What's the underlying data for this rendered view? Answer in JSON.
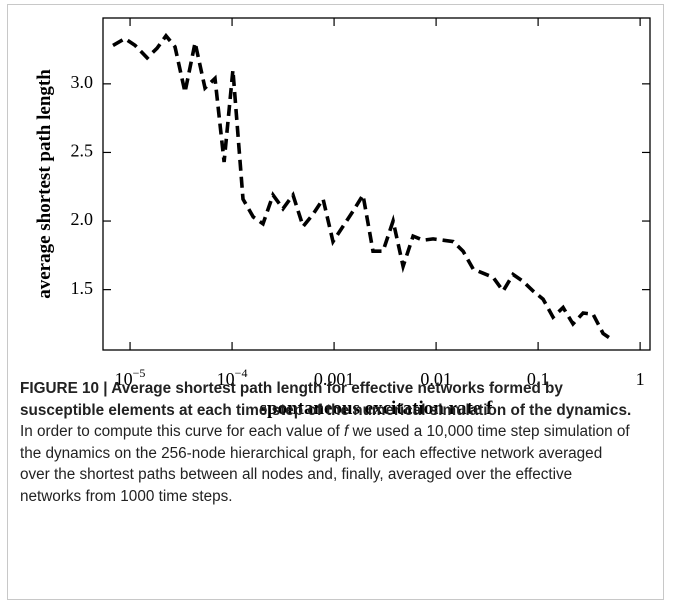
{
  "chart_data": {
    "type": "line",
    "x_label": "spontaneous excitation rate f",
    "y_label": "average shortest path length",
    "x_scale": "log",
    "color": "#000000",
    "line_style": "dashed",
    "x": [
      6.8e-06,
      8.9e-06,
      1.12e-05,
      1.47e-05,
      1.84e-05,
      2.25e-05,
      2.76e-05,
      3.46e-05,
      4.34e-05,
      5.43e-05,
      6.81e-05,
      8.35e-05,
      0.000102,
      0.000128,
      0.000161,
      0.000201,
      0.000252,
      0.000316,
      0.000396,
      0.000497,
      0.000622,
      0.00078,
      0.000977,
      0.00122,
      0.00153,
      0.00192,
      0.00241,
      0.00302,
      0.00379,
      0.00475,
      0.00595,
      0.00746,
      0.00935,
      0.0117,
      0.0147,
      0.0184,
      0.0231,
      0.0289,
      0.0362,
      0.0454,
      0.0569,
      0.0713,
      0.0893,
      0.112,
      0.14,
      0.176,
      0.22,
      0.276,
      0.346,
      0.434,
      0.543
    ],
    "y": [
      3.28,
      3.33,
      3.28,
      3.19,
      3.26,
      3.35,
      3.27,
      2.94,
      3.3,
      2.97,
      3.04,
      2.43,
      3.1,
      2.16,
      2.03,
      1.98,
      2.19,
      2.09,
      2.19,
      1.96,
      2.05,
      2.16,
      1.85,
      1.96,
      2.07,
      2.19,
      1.78,
      1.78,
      2.0,
      1.67,
      1.89,
      1.86,
      1.87,
      1.86,
      1.85,
      1.78,
      1.65,
      1.62,
      1.59,
      1.49,
      1.61,
      1.56,
      1.49,
      1.43,
      1.3,
      1.37,
      1.25,
      1.33,
      1.32,
      1.18,
      1.13
    ],
    "xlim": [
      5.43e-06,
      1.25
    ],
    "ylim": [
      1.06,
      3.48
    ],
    "xticks": [
      {
        "value": 1e-05,
        "label": "10",
        "exponent": "−5"
      },
      {
        "value": 0.0001,
        "label": "10",
        "exponent": "−4"
      },
      0.001,
      0.01,
      0.1,
      1
    ],
    "yticks": [
      {
        "value": 3,
        "label": "3.0"
      },
      2.5,
      {
        "value": 2,
        "label": "2.0"
      },
      1.5
    ]
  },
  "caption": {
    "heading": "FIGURE 10 | Average shortest path length for effective networks formed by susceptible elements at each time step of the numerical simulation of the dynamics.",
    "text_before": " In order to compute this curve for each value of ",
    "variable": "f",
    "text_after": " we used a 10,000 time step simulation of the dynamics on the 256-node hierarchical graph, for each effective network averaged over the shortest paths between all nodes and, finally, averaged over the effective networks from 1000 time steps."
  }
}
